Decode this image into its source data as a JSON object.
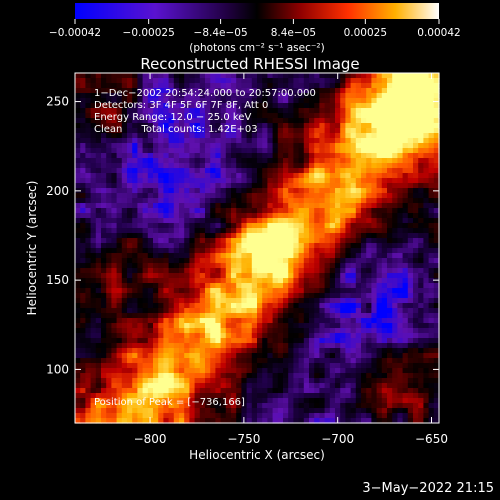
{
  "chart_data": {
    "type": "heatmap",
    "title": "Reconstructed RHESSI Image",
    "xlabel": "Heliocentric X (arcsec)",
    "ylabel": "Heliocentric Y (arcsec)",
    "xlim": [
      -840,
      -646
    ],
    "ylim": [
      70,
      266
    ],
    "xticks": [
      -800,
      -750,
      -700,
      -650
    ],
    "yticks": [
      100,
      150,
      200,
      250
    ],
    "xtick_labels": [
      "−800",
      "−750",
      "−700",
      "−650"
    ],
    "ytick_labels": [
      "100",
      "150",
      "200",
      "250"
    ],
    "colorbar": {
      "range": [
        -0.00042,
        0.00042
      ],
      "ticks": [
        -0.00042,
        -0.00025,
        -8.4e-05,
        8.4e-05,
        0.00025,
        0.00042
      ],
      "tick_labels": [
        "−0.00042",
        "−0.00025",
        "−8.4e−05",
        "8.4e−05",
        "0.00025",
        "0.00042"
      ],
      "unit": "(photons cm⁻² s⁻¹ asec⁻²)"
    },
    "annotations": [
      "1−Dec−2002 20:54:24.000 to 20:57:00.000",
      "Detectors: 3F 4F 5F 6F 7F 8F, Att 0",
      "Energy Range: 12.0 − 25.0 keV",
      "Clean      Total counts: 1.42E+03"
    ],
    "peak_label": "Position of Peak = [−736,166]",
    "peak_position": [
      -736,
      166
    ],
    "colormap": [
      "#0000ff",
      "#6010b0",
      "#20004a",
      "#000000",
      "#5a0000",
      "#c00000",
      "#ff5500",
      "#ffb000",
      "#ffff90"
    ]
  },
  "footer": {
    "date": "3−May−2022 21:15"
  }
}
